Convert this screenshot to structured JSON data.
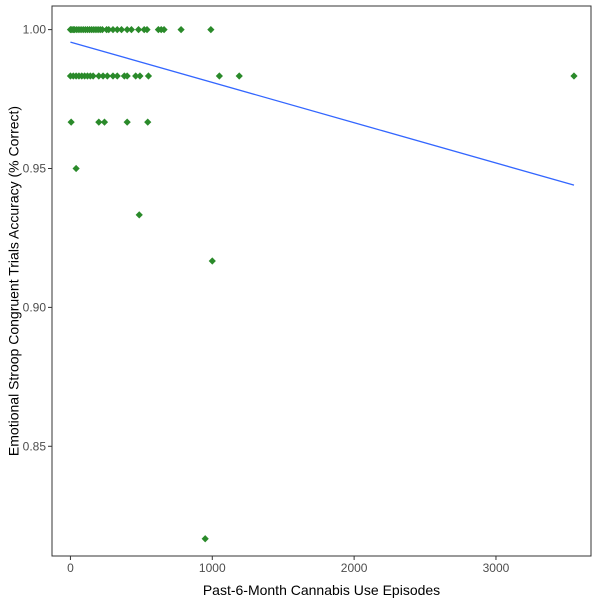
{
  "chart_data": {
    "type": "scatter",
    "title": "",
    "xlabel": "Past-6-Month Cannabis Use Episodes",
    "ylabel": "Emotional Stroop Congruent Trials Accuracy (% Correct)",
    "xlim": [
      -130,
      3670
    ],
    "ylim": [
      0.8105,
      1.0085
    ],
    "x_ticks": [
      0,
      1000,
      2000,
      3000
    ],
    "x_tick_labels": [
      "0",
      "1000",
      "2000",
      "3000"
    ],
    "y_ticks": [
      0.85,
      0.9,
      0.95,
      1.0
    ],
    "y_tick_labels": [
      "0.85",
      "0.90",
      "0.95",
      "1.00"
    ],
    "grid": false,
    "legend": null,
    "colors": {
      "points": "#2a8a2a",
      "trend": "#3366ff",
      "axis": "#333333",
      "tick_text": "#4d4d4d"
    },
    "series": [
      {
        "kind": "points",
        "points": [
          {
            "x": 0,
            "y": 1.0
          },
          {
            "x": 10,
            "y": 1.0
          },
          {
            "x": 20,
            "y": 1.0
          },
          {
            "x": 30,
            "y": 1.0
          },
          {
            "x": 45,
            "y": 1.0
          },
          {
            "x": 60,
            "y": 1.0
          },
          {
            "x": 75,
            "y": 1.0
          },
          {
            "x": 90,
            "y": 1.0
          },
          {
            "x": 105,
            "y": 1.0
          },
          {
            "x": 120,
            "y": 1.0
          },
          {
            "x": 135,
            "y": 1.0
          },
          {
            "x": 150,
            "y": 1.0
          },
          {
            "x": 165,
            "y": 1.0
          },
          {
            "x": 180,
            "y": 1.0
          },
          {
            "x": 195,
            "y": 1.0
          },
          {
            "x": 210,
            "y": 1.0
          },
          {
            "x": 225,
            "y": 1.0
          },
          {
            "x": 255,
            "y": 1.0
          },
          {
            "x": 270,
            "y": 1.0
          },
          {
            "x": 300,
            "y": 1.0
          },
          {
            "x": 330,
            "y": 1.0
          },
          {
            "x": 360,
            "y": 1.0
          },
          {
            "x": 400,
            "y": 1.0
          },
          {
            "x": 430,
            "y": 1.0
          },
          {
            "x": 480,
            "y": 1.0
          },
          {
            "x": 520,
            "y": 1.0
          },
          {
            "x": 540,
            "y": 1.0
          },
          {
            "x": 620,
            "y": 1.0
          },
          {
            "x": 640,
            "y": 1.0
          },
          {
            "x": 660,
            "y": 1.0
          },
          {
            "x": 780,
            "y": 1.0
          },
          {
            "x": 990,
            "y": 1.0
          },
          {
            "x": 0,
            "y": 0.9833
          },
          {
            "x": 20,
            "y": 0.9833
          },
          {
            "x": 40,
            "y": 0.9833
          },
          {
            "x": 60,
            "y": 0.9833
          },
          {
            "x": 80,
            "y": 0.9833
          },
          {
            "x": 100,
            "y": 0.9833
          },
          {
            "x": 120,
            "y": 0.9833
          },
          {
            "x": 140,
            "y": 0.9833
          },
          {
            "x": 160,
            "y": 0.9833
          },
          {
            "x": 200,
            "y": 0.9833
          },
          {
            "x": 230,
            "y": 0.9833
          },
          {
            "x": 260,
            "y": 0.9833
          },
          {
            "x": 300,
            "y": 0.9833
          },
          {
            "x": 330,
            "y": 0.9833
          },
          {
            "x": 380,
            "y": 0.9833
          },
          {
            "x": 400,
            "y": 0.9833
          },
          {
            "x": 460,
            "y": 0.9833
          },
          {
            "x": 490,
            "y": 0.9833
          },
          {
            "x": 550,
            "y": 0.9833
          },
          {
            "x": 1050,
            "y": 0.9833
          },
          {
            "x": 1190,
            "y": 0.9833
          },
          {
            "x": 3550,
            "y": 0.9833
          },
          {
            "x": 5,
            "y": 0.9667
          },
          {
            "x": 200,
            "y": 0.9667
          },
          {
            "x": 240,
            "y": 0.9667
          },
          {
            "x": 400,
            "y": 0.9667
          },
          {
            "x": 545,
            "y": 0.9667
          },
          {
            "x": 40,
            "y": 0.95
          },
          {
            "x": 485,
            "y": 0.9333
          },
          {
            "x": 1000,
            "y": 0.9167
          },
          {
            "x": 950,
            "y": 0.8167
          }
        ]
      },
      {
        "kind": "trend",
        "x": [
          0,
          3550
        ],
        "y": [
          0.9955,
          0.944
        ]
      }
    ]
  }
}
